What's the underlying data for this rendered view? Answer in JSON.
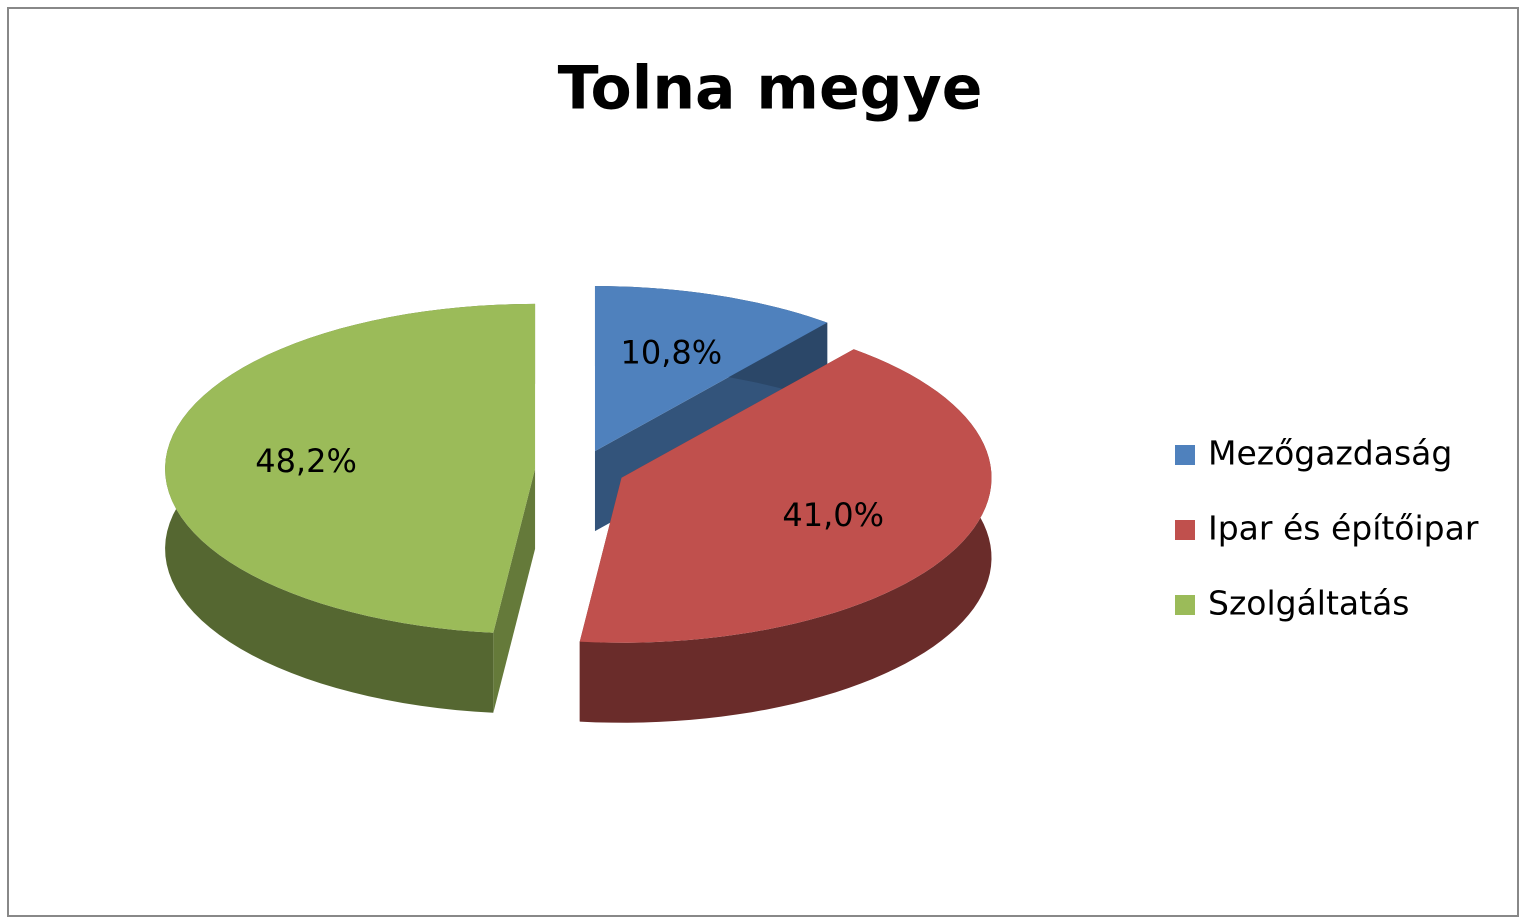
{
  "chart_data": {
    "type": "pie",
    "title": "Tolna megye",
    "categories": [
      "Mezőgazdaság",
      "Ipar és építőipar",
      "Szolgáltatás"
    ],
    "values": [
      10.8,
      41.0,
      48.2
    ],
    "value_labels": [
      "10,8%",
      "41,0%",
      "48,2%"
    ],
    "colors": [
      "#4f81bd",
      "#c0504d",
      "#9bbb59"
    ],
    "legend": "right"
  }
}
